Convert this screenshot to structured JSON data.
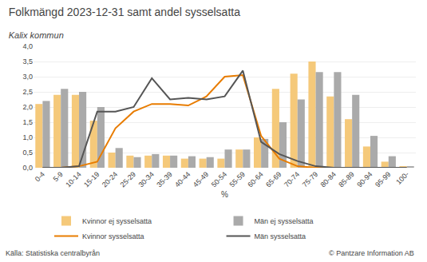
{
  "chart_data": {
    "type": "bar",
    "title": "Folkmängd 2023-12-31 samt andel sysselsatta",
    "subtitle": "Kalix kommun",
    "xlabel": "%",
    "categories": [
      "0-4",
      "5-9",
      "10-14",
      "15-19",
      "20-24",
      "25-29",
      "30-34",
      "35-39",
      "40-44",
      "45-49",
      "50-54",
      "55-59",
      "60-64",
      "65-69",
      "70-74",
      "75-79",
      "80-84",
      "85-89",
      "90-94",
      "95-99",
      "100-"
    ],
    "series": [
      {
        "name": "Kvinnor ej sysselsatta",
        "type": "bar",
        "color": "#f5c97a",
        "values": [
          2.1,
          2.4,
          2.4,
          1.55,
          0.5,
          0.4,
          0.4,
          0.4,
          0.3,
          0.3,
          0.3,
          0.6,
          1.0,
          2.6,
          3.1,
          3.5,
          2.35,
          1.6,
          0.7,
          0.2,
          0.05
        ]
      },
      {
        "name": "Män ej sysselsatta",
        "type": "bar",
        "color": "#aaaaaa",
        "values": [
          2.2,
          2.6,
          2.5,
          2.0,
          0.65,
          0.35,
          0.45,
          0.4,
          0.38,
          0.35,
          0.6,
          0.6,
          0.95,
          1.5,
          2.25,
          3.15,
          3.15,
          2.4,
          1.05,
          0.38,
          0.05
        ]
      },
      {
        "name": "Kvinnor sysselsatta",
        "type": "line",
        "color": "#e87c00",
        "values": [
          0.0,
          0.0,
          0.05,
          0.2,
          1.3,
          1.85,
          2.1,
          2.1,
          2.05,
          2.35,
          3.0,
          3.05,
          1.05,
          0.3,
          0.05,
          0.0,
          0.0,
          0.0,
          0.0,
          0.0,
          0.0
        ]
      },
      {
        "name": "Män sysselsatta",
        "type": "line",
        "color": "#555555",
        "values": [
          0.0,
          0.0,
          0.05,
          1.85,
          1.85,
          2.0,
          2.95,
          2.25,
          2.3,
          2.25,
          2.35,
          3.2,
          0.85,
          0.45,
          0.22,
          0.05,
          0.0,
          0.0,
          0.0,
          0.0,
          0.0
        ]
      }
    ],
    "ylim": [
      0,
      4.0
    ],
    "yticks": [
      {
        "value": 0.0,
        "label": "0,0"
      },
      {
        "value": 0.5,
        "label": "0,5"
      },
      {
        "value": 1.0,
        "label": "1,0"
      },
      {
        "value": 1.5,
        "label": "1,5"
      },
      {
        "value": 2.0,
        "label": "2,0"
      },
      {
        "value": 2.5,
        "label": "2,5"
      },
      {
        "value": 3.0,
        "label": "3,0"
      },
      {
        "value": 3.5,
        "label": "3,5"
      },
      {
        "value": 4.0,
        "label": "4,0"
      }
    ],
    "grid": true,
    "legend": "bottom",
    "annotations": [
      "Källa: Statistiska centralbyrån",
      "© Pantzare Information AB"
    ]
  }
}
